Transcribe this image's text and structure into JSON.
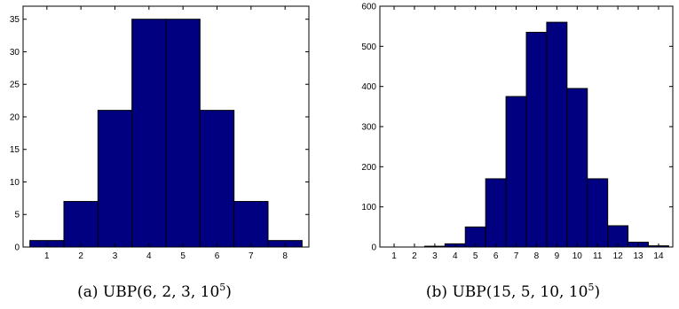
{
  "chart_data": [
    {
      "type": "bar",
      "caption": {
        "prefix": "(a)  UBP(6, 2, 3, 10",
        "sup": "5",
        "suffix": ")"
      },
      "categories": [
        1,
        2,
        3,
        4,
        5,
        6,
        7,
        8
      ],
      "values": [
        1,
        7,
        21,
        35,
        35,
        21,
        7,
        1
      ],
      "xlim": [
        0.3,
        8.7
      ],
      "ylim": [
        0,
        37
      ],
      "yticks": [
        0,
        5,
        10,
        15,
        20,
        25,
        30,
        35
      ],
      "xticks": [
        1,
        2,
        3,
        4,
        5,
        6,
        7,
        8
      ],
      "bar_color": "#000080",
      "grid": false
    },
    {
      "type": "bar",
      "caption": {
        "prefix": "(b)  UBP(15, 5, 10, 10",
        "sup": "5",
        "suffix": ")"
      },
      "categories": [
        1,
        2,
        3,
        4,
        5,
        6,
        7,
        8,
        9,
        10,
        11,
        12,
        13,
        14
      ],
      "values": [
        0,
        0,
        2,
        8,
        50,
        170,
        375,
        535,
        560,
        395,
        170,
        53,
        12,
        3
      ],
      "xlim": [
        0.3,
        14.7
      ],
      "ylim": [
        0,
        600
      ],
      "yticks": [
        0,
        100,
        200,
        300,
        400,
        500,
        600
      ],
      "xticks": [
        1,
        2,
        3,
        4,
        5,
        6,
        7,
        8,
        9,
        10,
        11,
        12,
        13,
        14
      ],
      "bar_color": "#000080",
      "grid": false
    }
  ]
}
